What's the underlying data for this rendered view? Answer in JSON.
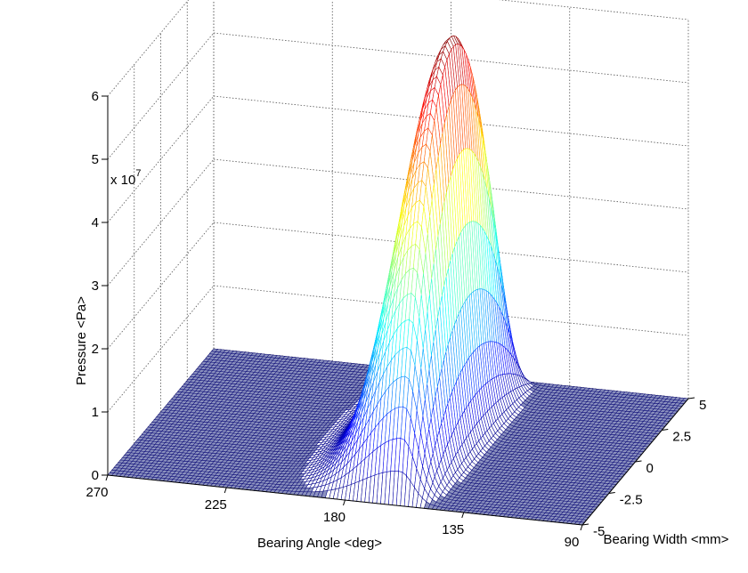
{
  "chart_data": {
    "type": "surface",
    "zlabel": "Pressure <Pa>",
    "xlabel": "Bearing Angle <deg>",
    "ylabel": "Bearing Width <mm>",
    "z_multiplier_prefix": "x 10",
    "z_multiplier_exp": "7",
    "x_range": [
      90,
      270
    ],
    "y_range": [
      -5,
      5
    ],
    "z_range": [
      0,
      6
    ],
    "x_ticks": [
      "270",
      "225",
      "180",
      "135",
      "90"
    ],
    "x_tick_values": [
      270,
      225,
      180,
      135,
      90
    ],
    "y_ticks": [
      "-5",
      "-2.5",
      "0",
      "2.5",
      "5"
    ],
    "y_tick_values": [
      -5,
      -2.5,
      0,
      2.5,
      5
    ],
    "z_ticks": [
      "0",
      "1",
      "2",
      "3",
      "4",
      "5",
      "6"
    ],
    "z_tick_values": [
      0,
      1,
      2,
      3,
      4,
      5,
      6
    ],
    "grid": true,
    "colormap": "jet",
    "edge_color": "#12127a",
    "face_color": "#8c92bf",
    "peak": {
      "x_deg": 160,
      "y_mm": 0,
      "z_value": 6.4,
      "spread_before_peak_deg": 20,
      "spread_after_peak_deg": 7,
      "y_shape": "parabolic, zero at y = ±5"
    }
  }
}
